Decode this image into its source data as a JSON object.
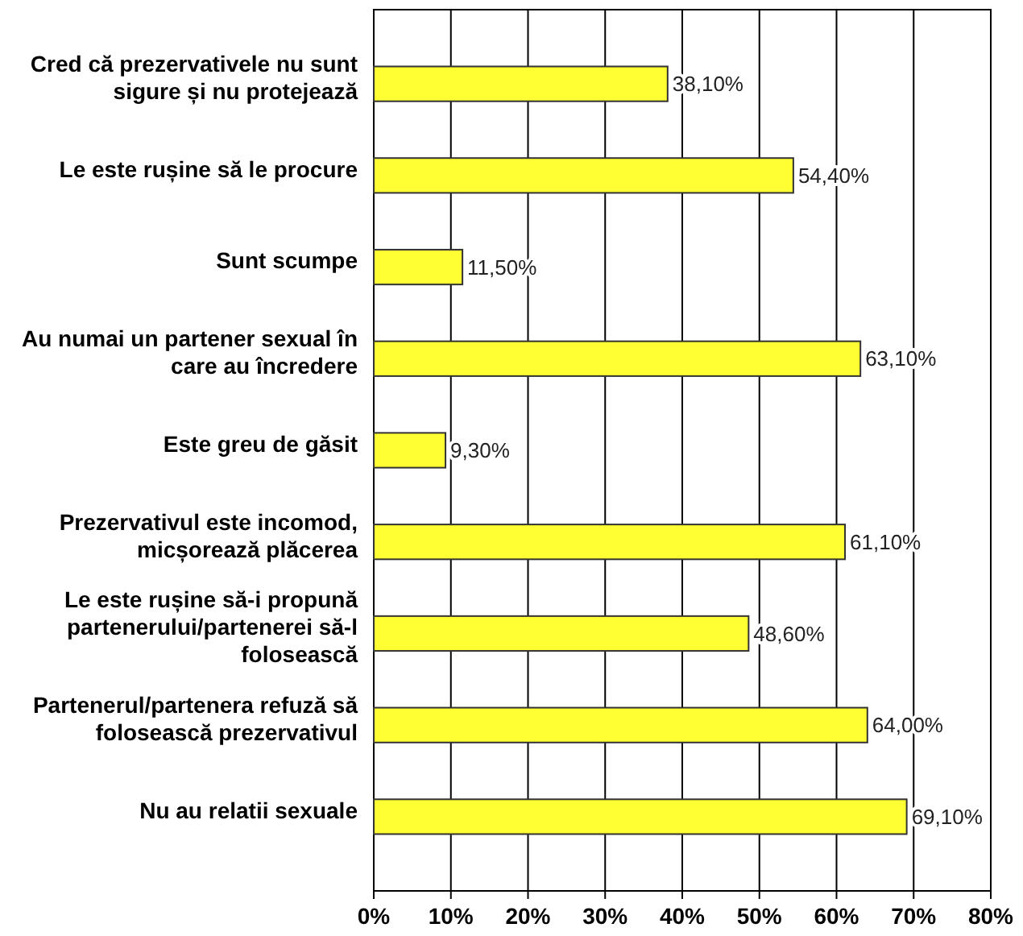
{
  "chart_data": {
    "type": "bar",
    "orientation": "horizontal",
    "categories": [
      "Cred că prezervativele nu sunt sigure și nu protejează",
      "Le este rușine să le procure",
      "Sunt scumpe",
      "Au numai un partener sexual în care au încredere",
      "Este greu de găsit",
      "Prezervativul este incomod, micșorează plăcerea",
      "Le este rușine să-i propună partenerului/partenerei să-l folosească",
      "Partenerul/partenera refuză să folosească prezervativul",
      "Nu au relatii sexuale"
    ],
    "values": [
      38.1,
      54.4,
      11.5,
      63.1,
      9.3,
      61.1,
      48.6,
      64.0,
      69.1
    ],
    "value_labels": [
      "38,10%",
      "54,40%",
      "11,50%",
      "63,10%",
      "9,30%",
      "61,10%",
      "48,60%",
      "64,00%",
      "69,10%"
    ],
    "color": "#ffff33",
    "xlim": [
      0,
      80
    ],
    "xticks": [
      {
        "value": 0,
        "label": "0%"
      },
      {
        "value": 10,
        "label": "10%"
      },
      {
        "value": 20,
        "label": "20%"
      },
      {
        "value": 30,
        "label": "30%"
      },
      {
        "value": 40,
        "label": "40%"
      },
      {
        "value": 50,
        "label": "50%"
      },
      {
        "value": 60,
        "label": "60%"
      },
      {
        "value": 70,
        "label": "70%"
      },
      {
        "value": 80,
        "label": "80%"
      }
    ],
    "grid": "x"
  }
}
